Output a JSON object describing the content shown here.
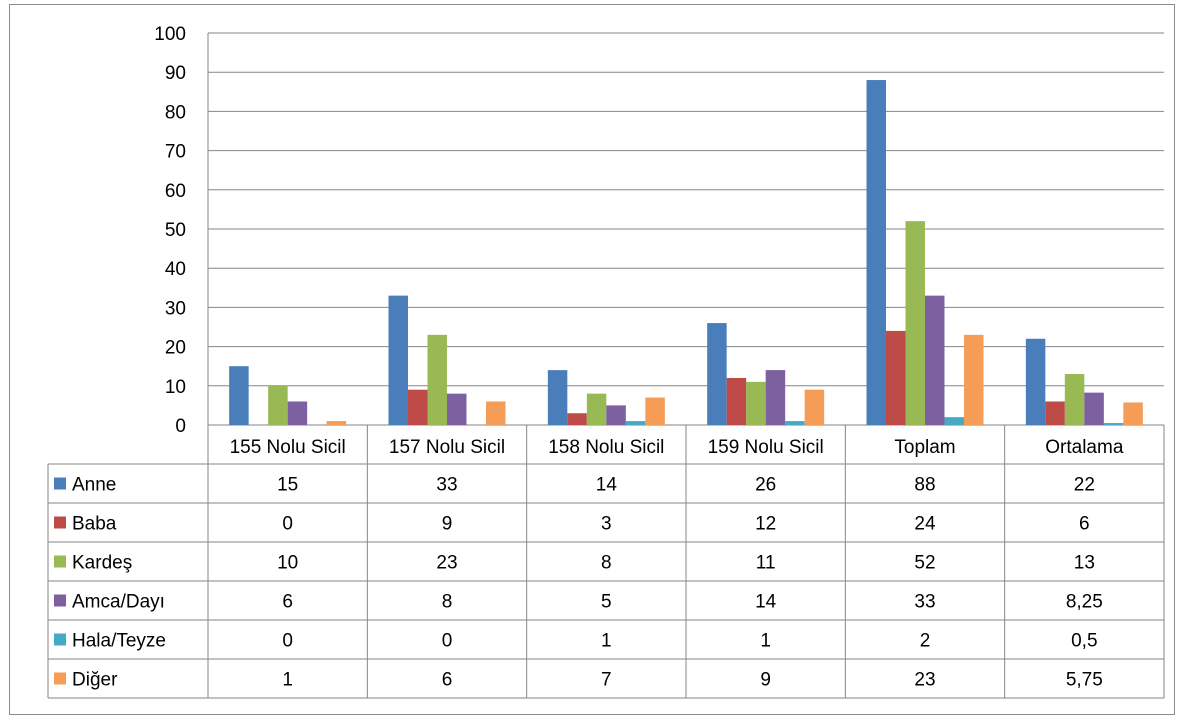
{
  "chart_data": {
    "type": "bar",
    "categories": [
      "155 Nolu Sicil",
      "157 Nolu Sicil",
      "158 Nolu Sicil",
      "159 Nolu Sicil",
      "Toplam",
      "Ortalama"
    ],
    "series": [
      {
        "name": "Anne",
        "color": "#4A7EBB",
        "values": [
          15,
          33,
          14,
          26,
          88,
          22
        ],
        "labels": [
          "15",
          "33",
          "14",
          "26",
          "88",
          "22"
        ]
      },
      {
        "name": "Baba",
        "color": "#BE4B48",
        "values": [
          0,
          9,
          3,
          12,
          24,
          6
        ],
        "labels": [
          "0",
          "9",
          "3",
          "12",
          "24",
          "6"
        ]
      },
      {
        "name": "Kardeş",
        "color": "#98B954",
        "values": [
          10,
          23,
          8,
          11,
          52,
          13
        ],
        "labels": [
          "10",
          "23",
          "8",
          "11",
          "52",
          "13"
        ]
      },
      {
        "name": "Amca/Dayı",
        "color": "#7D60A0",
        "values": [
          6,
          8,
          5,
          14,
          33,
          8.25
        ],
        "labels": [
          "6",
          "8",
          "5",
          "14",
          "33",
          "8,25"
        ]
      },
      {
        "name": "Hala/Teyze",
        "color": "#46AAC5",
        "values": [
          0,
          0,
          1,
          1,
          2,
          0.5
        ],
        "labels": [
          "0",
          "0",
          "1",
          "1",
          "2",
          "0,5"
        ]
      },
      {
        "name": "Diğer",
        "color": "#F59D56",
        "values": [
          1,
          6,
          7,
          9,
          23,
          5.75
        ],
        "labels": [
          "1",
          "6",
          "7",
          "9",
          "23",
          "5,75"
        ]
      }
    ],
    "y_ticks": [
      "0",
      "10",
      "20",
      "30",
      "40",
      "50",
      "60",
      "70",
      "80",
      "90",
      "100"
    ],
    "ylim": [
      0,
      100
    ],
    "grid": true,
    "legend": "data-table-left"
  }
}
